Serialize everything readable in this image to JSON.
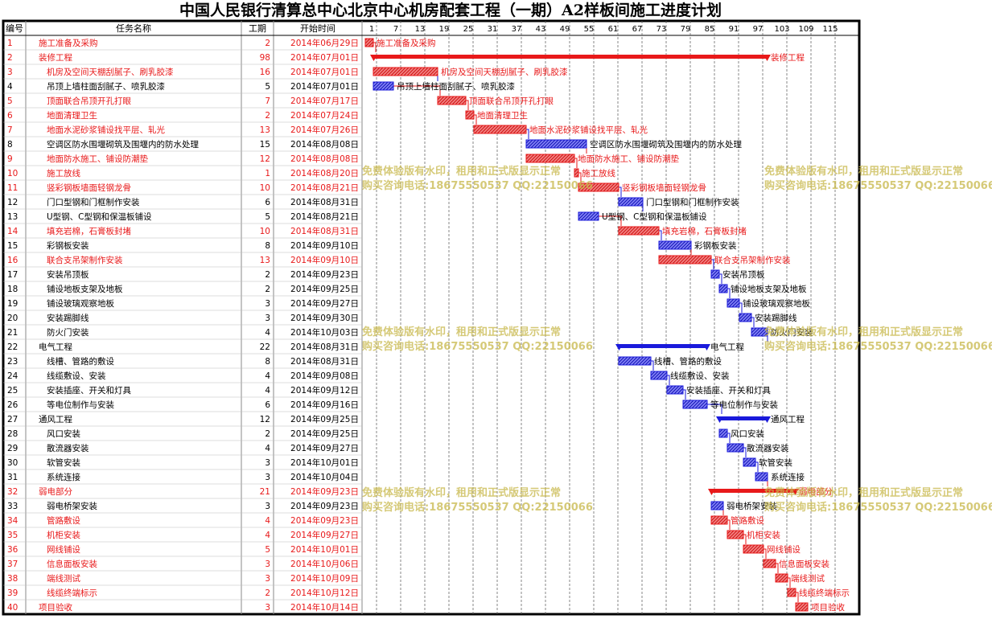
{
  "title": "中国人民银行清算总中心北京中心机房配套工程（一期）A2样板间施工进度计划",
  "watermark": {
    "line1": "免费体验版有水印，租用和正式版显示正常",
    "line2": "购买咨询电话:18675550537 QQ:22150066"
  },
  "colors": {
    "red": "#e8191a",
    "blue": "#1a1adb",
    "grid": "#000000",
    "watermark": "#c8b84a"
  },
  "chart_data": {
    "type": "gantt",
    "columns": {
      "id": "编号",
      "name": "任务名称",
      "duration": "工期",
      "start": "开始时间"
    },
    "timescale_ticks": [
      1,
      7,
      13,
      19,
      25,
      31,
      37,
      43,
      49,
      55,
      61,
      67,
      73,
      79,
      85,
      91,
      97,
      103,
      109,
      115
    ],
    "timescale_unit": "day",
    "rows": [
      {
        "id": "1",
        "name": "施工准备及采购",
        "duration": 2,
        "start": "2014年06月29日",
        "color": "red",
        "level": 0,
        "summary": false,
        "start_day": 1
      },
      {
        "id": "2",
        "name": "装修工程",
        "duration": 98,
        "start": "2014年07月01日",
        "color": "red",
        "level": 0,
        "summary": true,
        "start_day": 3
      },
      {
        "id": "3",
        "name": "机房及空间天棚刮腻子、刷乳胶漆",
        "duration": 16,
        "start": "2014年07月01日",
        "color": "red",
        "level": 1,
        "summary": false,
        "start_day": 3
      },
      {
        "id": "4",
        "name": "吊顶上墙柱面刮腻子、喷乳胶漆",
        "duration": 5,
        "start": "2014年07月01日",
        "color": "blue",
        "level": 1,
        "summary": false,
        "start_day": 3
      },
      {
        "id": "5",
        "name": "顶面联合吊顶开孔打眼",
        "duration": 7,
        "start": "2014年07月17日",
        "color": "red",
        "level": 1,
        "summary": false,
        "start_day": 19
      },
      {
        "id": "6",
        "name": "地面清理卫生",
        "duration": 2,
        "start": "2014年07月24日",
        "color": "red",
        "level": 1,
        "summary": false,
        "start_day": 26
      },
      {
        "id": "7",
        "name": "地面水泥砂浆铺设找平层、轧光",
        "duration": 13,
        "start": "2014年07月26日",
        "color": "red",
        "level": 1,
        "summary": false,
        "start_day": 28
      },
      {
        "id": "8",
        "name": "空调区防水围堰砌筑及围堰内的防水处理",
        "duration": 15,
        "start": "2014年08月08日",
        "color": "blue",
        "level": 1,
        "summary": false,
        "start_day": 41
      },
      {
        "id": "9",
        "name": "地面防水施工、铺设防潮垫",
        "duration": 12,
        "start": "2014年08月08日",
        "color": "red",
        "level": 1,
        "summary": false,
        "start_day": 41
      },
      {
        "id": "10",
        "name": "施工放线",
        "duration": 1,
        "start": "2014年08月20日",
        "color": "red",
        "level": 1,
        "summary": false,
        "start_day": 53
      },
      {
        "id": "11",
        "name": "竖彩钢板墙面轻钢龙骨",
        "duration": 10,
        "start": "2014年08月21日",
        "color": "red",
        "level": 1,
        "summary": false,
        "start_day": 54
      },
      {
        "id": "12",
        "name": "门口型钢和门框制作安装",
        "duration": 6,
        "start": "2014年08月31日",
        "color": "blue",
        "level": 1,
        "summary": false,
        "start_day": 64
      },
      {
        "id": "13",
        "name": "U型钢、C型钢和保温板铺设",
        "duration": 5,
        "start": "2014年08月21日",
        "color": "blue",
        "level": 1,
        "summary": false,
        "start_day": 54
      },
      {
        "id": "14",
        "name": "填充岩棉，石膏板封堵",
        "duration": 10,
        "start": "2014年08月31日",
        "color": "red",
        "level": 1,
        "summary": false,
        "start_day": 64
      },
      {
        "id": "15",
        "name": "彩钢板安装",
        "duration": 8,
        "start": "2014年09月10日",
        "color": "blue",
        "level": 1,
        "summary": false,
        "start_day": 74
      },
      {
        "id": "16",
        "name": "联合支吊架制作安装",
        "duration": 13,
        "start": "2014年09月10日",
        "color": "red",
        "level": 1,
        "summary": false,
        "start_day": 74
      },
      {
        "id": "17",
        "name": "安装吊顶板",
        "duration": 2,
        "start": "2014年09月23日",
        "color": "blue",
        "level": 1,
        "summary": false,
        "start_day": 87
      },
      {
        "id": "18",
        "name": "铺设地板支架及地板",
        "duration": 2,
        "start": "2014年09月25日",
        "color": "blue",
        "level": 1,
        "summary": false,
        "start_day": 89
      },
      {
        "id": "19",
        "name": "铺设玻璃观察地板",
        "duration": 3,
        "start": "2014年09月27日",
        "color": "blue",
        "level": 1,
        "summary": false,
        "start_day": 91
      },
      {
        "id": "20",
        "name": "安装踢脚线",
        "duration": 3,
        "start": "2014年09月30日",
        "color": "blue",
        "level": 1,
        "summary": false,
        "start_day": 94
      },
      {
        "id": "21",
        "name": "防火门安装",
        "duration": 4,
        "start": "2014年10月03日",
        "color": "blue",
        "level": 1,
        "summary": false,
        "start_day": 97
      },
      {
        "id": "22",
        "name": "电气工程",
        "duration": 22,
        "start": "2014年08月31日",
        "color": "blue",
        "level": 0,
        "summary": true,
        "start_day": 64
      },
      {
        "id": "23",
        "name": "线槽、管路的敷设",
        "duration": 8,
        "start": "2014年08月31日",
        "color": "blue",
        "level": 1,
        "summary": false,
        "start_day": 64
      },
      {
        "id": "24",
        "name": "线缆敷设、安装",
        "duration": 4,
        "start": "2014年09月08日",
        "color": "blue",
        "level": 1,
        "summary": false,
        "start_day": 72
      },
      {
        "id": "25",
        "name": "安装插座、开关和灯具",
        "duration": 4,
        "start": "2014年09月12日",
        "color": "blue",
        "level": 1,
        "summary": false,
        "start_day": 76
      },
      {
        "id": "26",
        "name": "等电位制作与安装",
        "duration": 6,
        "start": "2014年09月16日",
        "color": "blue",
        "level": 1,
        "summary": false,
        "start_day": 80
      },
      {
        "id": "27",
        "name": "通风工程",
        "duration": 12,
        "start": "2014年09月25日",
        "color": "blue",
        "level": 0,
        "summary": true,
        "start_day": 89
      },
      {
        "id": "28",
        "name": "风口安装",
        "duration": 2,
        "start": "2014年09月25日",
        "color": "blue",
        "level": 1,
        "summary": false,
        "start_day": 89
      },
      {
        "id": "29",
        "name": "散流器安装",
        "duration": 4,
        "start": "2014年09月27日",
        "color": "blue",
        "level": 1,
        "summary": false,
        "start_day": 91
      },
      {
        "id": "30",
        "name": "软管安装",
        "duration": 3,
        "start": "2014年10月01日",
        "color": "blue",
        "level": 1,
        "summary": false,
        "start_day": 95
      },
      {
        "id": "31",
        "name": "系统连接",
        "duration": 3,
        "start": "2014年10月04日",
        "color": "blue",
        "level": 1,
        "summary": false,
        "start_day": 98
      },
      {
        "id": "32",
        "name": "弱电部分",
        "duration": 21,
        "start": "2014年09月23日",
        "color": "red",
        "level": 0,
        "summary": true,
        "start_day": 87
      },
      {
        "id": "33",
        "name": "弱电桥架安装",
        "duration": 3,
        "start": "2014年09月23日",
        "color": "blue",
        "level": 1,
        "summary": false,
        "start_day": 87
      },
      {
        "id": "34",
        "name": "管路敷设",
        "duration": 4,
        "start": "2014年09月23日",
        "color": "red",
        "level": 1,
        "summary": false,
        "start_day": 87
      },
      {
        "id": "35",
        "name": "机柜安装",
        "duration": 4,
        "start": "2014年09月27日",
        "color": "red",
        "level": 1,
        "summary": false,
        "start_day": 91
      },
      {
        "id": "36",
        "name": "网线铺设",
        "duration": 5,
        "start": "2014年10月01日",
        "color": "red",
        "level": 1,
        "summary": false,
        "start_day": 95
      },
      {
        "id": "37",
        "name": "信息面板安装",
        "duration": 3,
        "start": "2014年10月06日",
        "color": "red",
        "level": 1,
        "summary": false,
        "start_day": 100
      },
      {
        "id": "38",
        "name": "端线测试",
        "duration": 3,
        "start": "2014年10月09日",
        "color": "red",
        "level": 1,
        "summary": false,
        "start_day": 103
      },
      {
        "id": "39",
        "name": "线缆终端标示",
        "duration": 2,
        "start": "2014年10月12日",
        "color": "red",
        "level": 1,
        "summary": false,
        "start_day": 106
      },
      {
        "id": "40",
        "name": "项目验收",
        "duration": 3,
        "start": "2014年10月14日",
        "color": "red",
        "level": 0,
        "summary": false,
        "start_day": 108
      }
    ]
  }
}
